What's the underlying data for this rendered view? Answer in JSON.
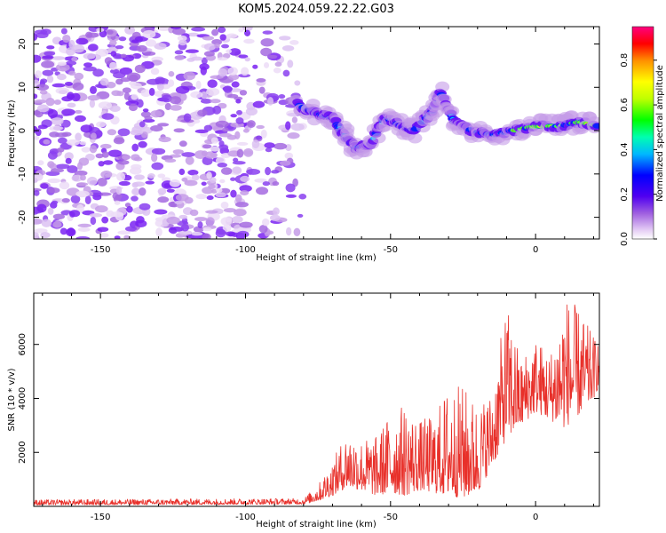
{
  "title": "KOM5.2024.059.22.22.G03",
  "colors": {
    "snr_line": "#e8302a",
    "axis": "#000000"
  },
  "chart_data": [
    {
      "type": "heatmap",
      "xlabel": "Height of straight line (km)",
      "ylabel": "Frequency (Hz)",
      "xlim": [
        -173,
        22
      ],
      "ylim": [
        -25,
        24
      ],
      "x_ticks": [
        -150,
        -100,
        -50,
        0
      ],
      "x_tick_labels": [
        "-150",
        "-100",
        "-50",
        "0"
      ],
      "y_ticks": [
        -20,
        -10,
        0,
        10,
        20
      ],
      "y_tick_labels": [
        "-20",
        "-10",
        "0",
        "10",
        "20"
      ],
      "colorbar": {
        "label": "Normalized spectral amplitude",
        "range": [
          0,
          0.95
        ],
        "ticks": [
          0.0,
          0.2,
          0.4,
          0.6,
          0.8
        ],
        "tick_labels": [
          "0.0",
          "0.2",
          "0.4",
          "0.6",
          "0.8"
        ]
      },
      "signal_ridge": [
        {
          "x": -82,
          "y": 6
        },
        {
          "x": -76,
          "y": 4
        },
        {
          "x": -70,
          "y": 3
        },
        {
          "x": -66,
          "y": -1
        },
        {
          "x": -62,
          "y": -4
        },
        {
          "x": -57,
          "y": -3
        },
        {
          "x": -52,
          "y": 3
        },
        {
          "x": -46,
          "y": 1
        },
        {
          "x": -42,
          "y": 0
        },
        {
          "x": -36,
          "y": 4
        },
        {
          "x": -33,
          "y": 9
        },
        {
          "x": -28,
          "y": 2
        },
        {
          "x": -22,
          "y": 0
        },
        {
          "x": -15,
          "y": -1
        },
        {
          "x": -8,
          "y": 0
        },
        {
          "x": 0,
          "y": 1
        },
        {
          "x": 8,
          "y": 1
        },
        {
          "x": 15,
          "y": 2
        },
        {
          "x": 22,
          "y": 1
        }
      ]
    },
    {
      "type": "line",
      "xlabel": "Height of straight line (km)",
      "ylabel": "SNR (10 * v/v)",
      "xlim": [
        -173,
        22
      ],
      "ylim": [
        0,
        7900
      ],
      "x_ticks": [
        -150,
        -100,
        -50,
        0
      ],
      "x_tick_labels": [
        "-150",
        "-100",
        "-50",
        "0"
      ],
      "y_ticks": [
        2000,
        4000,
        6000
      ],
      "y_tick_labels": [
        "2000",
        "4000",
        "6000"
      ],
      "envelope": {
        "x": [
          -173,
          -80,
          -75,
          -70,
          -65,
          -60,
          -55,
          -50,
          -45,
          -40,
          -35,
          -30,
          -25,
          -20,
          -15,
          -10,
          -5,
          0,
          5,
          10,
          15,
          20,
          22
        ],
        "low": [
          50,
          80,
          200,
          400,
          700,
          600,
          400,
          500,
          400,
          600,
          500,
          400,
          300,
          500,
          1500,
          2500,
          3000,
          3500,
          3200,
          2900,
          3400,
          4000,
          4500
        ],
        "high": [
          250,
          300,
          800,
          1700,
          2800,
          2500,
          2600,
          3500,
          3800,
          3200,
          3400,
          4500,
          4500,
          3800,
          4300,
          7500,
          5500,
          6300,
          5700,
          7900,
          7300,
          6300,
          6300
        ]
      }
    }
  ]
}
